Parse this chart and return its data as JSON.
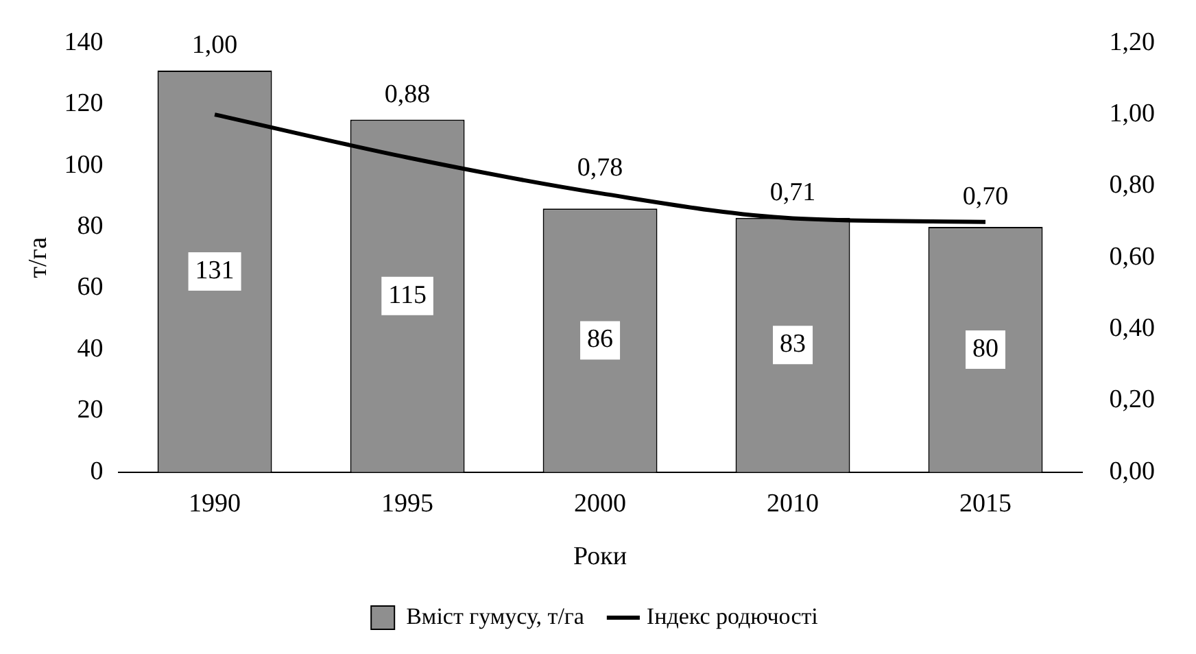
{
  "chart_data": {
    "type": "bar",
    "xlabel": "Роки",
    "ylabel": "т/га",
    "categories": [
      "1990",
      "1995",
      "2000",
      "2010",
      "2015"
    ],
    "series": [
      {
        "name": "Вміст гумусу, т/га",
        "color": "#8f8f8f",
        "values": [
          131,
          115,
          86,
          83,
          80
        ],
        "value_labels": [
          "131",
          "115",
          "86",
          "83",
          "80"
        ]
      },
      {
        "name": "Індекс родючості",
        "type": "line",
        "axis": "y2",
        "color": "#000000",
        "values": [
          1.0,
          0.88,
          0.78,
          0.71,
          0.7
        ],
        "value_labels": [
          "1,00",
          "0,88",
          "0,78",
          "0,71",
          "0,70"
        ]
      }
    ],
    "ylim": [
      0,
      140
    ],
    "yticks": [
      0,
      20,
      40,
      60,
      80,
      100,
      120,
      140
    ],
    "y2lim": [
      0,
      1.2
    ],
    "y2ticks": [
      {
        "value": 0,
        "label": "0,00"
      },
      {
        "value": 0.2,
        "label": "0,20"
      },
      {
        "value": 0.4,
        "label": "0,40"
      },
      {
        "value": 0.6,
        "label": "0,60"
      },
      {
        "value": 0.8,
        "label": "0,80"
      },
      {
        "value": 1.0,
        "label": "1,00"
      },
      {
        "value": 1.2,
        "label": "1,20"
      }
    ],
    "legend": "bottom",
    "marker": "none",
    "line_style": "solid",
    "grid": false
  }
}
